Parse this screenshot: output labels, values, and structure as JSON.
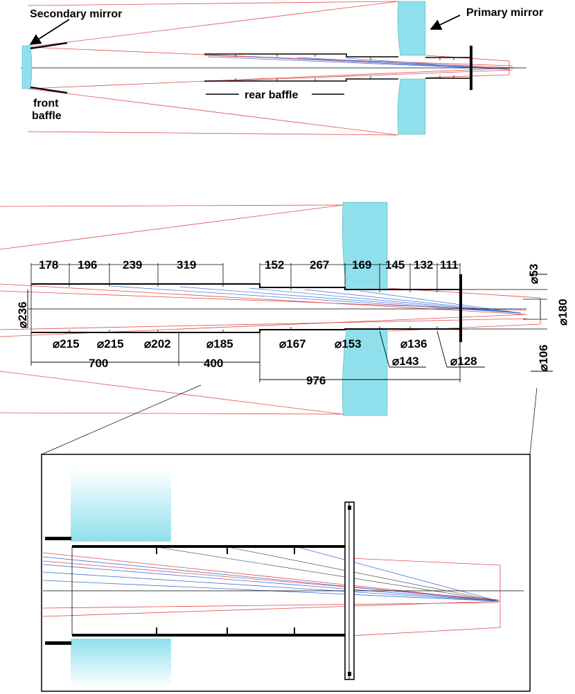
{
  "labels": {
    "secondary_mirror": "Secondary mirror",
    "primary_mirror": "Primary mirror",
    "front_baffle_1": "front",
    "front_baffle_2": "baffle",
    "rear_baffle": "rear baffle"
  },
  "segment_lengths": [
    "178",
    "196",
    "239",
    "319",
    "152",
    "267",
    "169",
    "145",
    "132",
    "111"
  ],
  "diameters_lower": [
    "⌀215",
    "⌀215",
    "⌀202",
    "⌀185",
    "⌀167",
    "⌀153",
    "⌀136"
  ],
  "diameters_leader": [
    "⌀143",
    "⌀128"
  ],
  "diameter_tube": "⌀236",
  "diameters_right": [
    "⌀53",
    "⌀180",
    "⌀106"
  ],
  "overall_dims": [
    "700",
    "400",
    "976"
  ],
  "colors": {
    "mirror": "#8fe0ec",
    "ray_red": "#e04848",
    "ray_blue": "#3a6fd8",
    "baffle": "#000000"
  }
}
